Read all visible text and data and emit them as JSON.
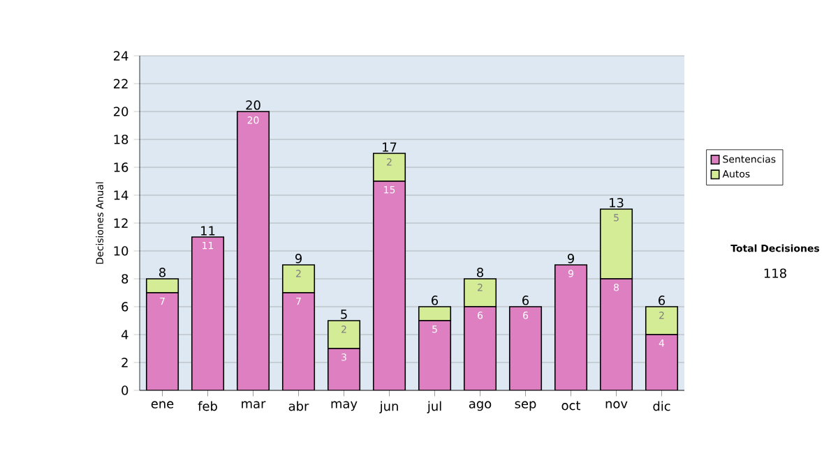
{
  "chart_data": {
    "type": "bar",
    "stacked": true,
    "ylabel": "Decisiones Anual",
    "categories": [
      "ene",
      "feb",
      "mar",
      "abr",
      "may",
      "jun",
      "jul",
      "ago",
      "sep",
      "oct",
      "nov",
      "dic"
    ],
    "series": [
      {
        "name": "Sentencias",
        "color": "#dd7fc1",
        "values": [
          7,
          11,
          20,
          7,
          3,
          15,
          5,
          6,
          6,
          9,
          8,
          4
        ],
        "value_labels": [
          "7",
          "11",
          "20",
          "7",
          "3",
          "15",
          "5",
          "6",
          "6",
          "9",
          "8",
          "4"
        ]
      },
      {
        "name": "Autos",
        "color": "#d4ec96",
        "values": [
          1,
          0,
          0,
          2,
          2,
          2,
          1,
          2,
          0,
          0,
          5,
          2
        ],
        "value_labels": [
          null,
          null,
          null,
          "2",
          "2",
          "2",
          null,
          "2",
          null,
          null,
          "5",
          "2"
        ]
      }
    ],
    "totals": [
      "8",
      "11",
      "20",
      "9",
      "5",
      "17",
      "6",
      "8",
      "6",
      "9",
      "13",
      "6"
    ],
    "ylim": [
      0,
      24
    ],
    "yticks": [
      0,
      2,
      4,
      6,
      8,
      10,
      12,
      14,
      16,
      18,
      20,
      22,
      24
    ],
    "grid": "y",
    "legend": "right",
    "annotations": [
      "Total Decisiones",
      "118"
    ]
  }
}
